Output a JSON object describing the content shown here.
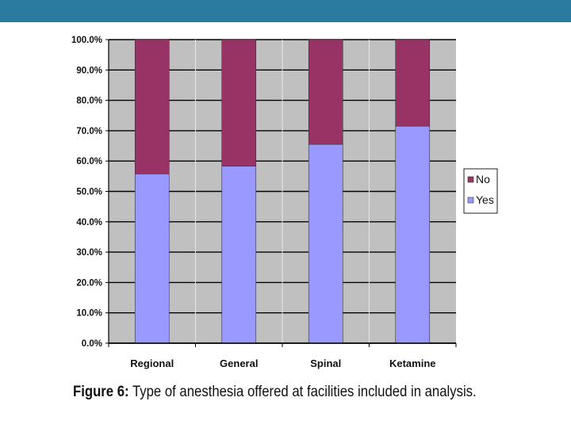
{
  "slide": {
    "top_bar_color": "#2b7aa0"
  },
  "figure": {
    "caption_label": "Figure 6:",
    "caption_text": " Type of anesthesia offered at facilities included in analysis."
  },
  "chart_data": {
    "type": "bar",
    "stacked": true,
    "categories": [
      "Regional",
      "General",
      "Spinal",
      "Ketamine"
    ],
    "series": [
      {
        "name": "Yes",
        "values": [
          55.8,
          58.3,
          65.5,
          71.5
        ],
        "color": "#9999ff"
      },
      {
        "name": "No",
        "values": [
          44.2,
          41.7,
          34.5,
          28.5
        ],
        "color": "#993366"
      }
    ],
    "title": "",
    "xlabel": "",
    "ylabel": "",
    "ylim": [
      0,
      100
    ],
    "y_ticks": [
      "0.0%",
      "10.0%",
      "20.0%",
      "30.0%",
      "40.0%",
      "50.0%",
      "60.0%",
      "70.0%",
      "80.0%",
      "90.0%",
      "100.0%"
    ],
    "grid": true,
    "plot_background": "#c0c0c0",
    "legend": {
      "position": "right",
      "entries": [
        "No",
        "Yes"
      ]
    }
  }
}
